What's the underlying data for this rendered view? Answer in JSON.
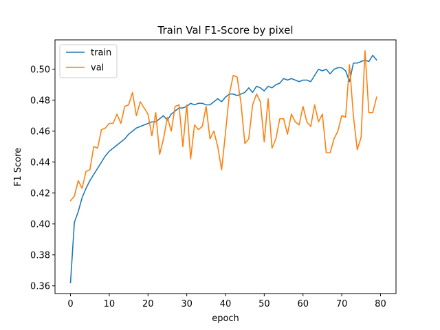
{
  "chart_data": {
    "type": "line",
    "title": "Train Val F1-Score by pixel",
    "xlabel": "epoch",
    "ylabel": "F1 Score",
    "xlim": [
      -4,
      84
    ],
    "ylim": [
      0.355,
      0.519
    ],
    "xticks": [
      0,
      10,
      20,
      30,
      40,
      50,
      60,
      70,
      80
    ],
    "yticks": [
      0.36,
      0.38,
      0.4,
      0.42,
      0.44,
      0.46,
      0.48,
      0.5
    ],
    "ytick_labels": [
      "0.36",
      "0.38",
      "0.40",
      "0.42",
      "0.44",
      "0.46",
      "0.48",
      "0.50"
    ],
    "grid": false,
    "legend_position": "upper-left",
    "x": [
      0,
      1,
      2,
      3,
      4,
      5,
      6,
      7,
      8,
      9,
      10,
      11,
      12,
      13,
      14,
      15,
      16,
      17,
      18,
      19,
      20,
      21,
      22,
      23,
      24,
      25,
      26,
      27,
      28,
      29,
      30,
      31,
      32,
      33,
      34,
      35,
      36,
      37,
      38,
      39,
      40,
      41,
      42,
      43,
      44,
      45,
      46,
      47,
      48,
      49,
      50,
      51,
      52,
      53,
      54,
      55,
      56,
      57,
      58,
      59,
      60,
      61,
      62,
      63,
      64,
      65,
      66,
      67,
      68,
      69,
      70,
      71,
      72,
      73,
      74,
      75,
      76,
      77,
      78,
      79
    ],
    "series": [
      {
        "name": "train",
        "color": "#1f77b4",
        "values": [
          0.362,
          0.401,
          0.408,
          0.417,
          0.423,
          0.428,
          0.432,
          0.436,
          0.44,
          0.444,
          0.447,
          0.449,
          0.451,
          0.453,
          0.455,
          0.458,
          0.46,
          0.462,
          0.463,
          0.464,
          0.465,
          0.466,
          0.466,
          0.468,
          0.47,
          0.467,
          0.471,
          0.473,
          0.475,
          0.475,
          0.476,
          0.478,
          0.477,
          0.478,
          0.478,
          0.477,
          0.477,
          0.479,
          0.481,
          0.479,
          0.482,
          0.484,
          0.484,
          0.483,
          0.484,
          0.485,
          0.488,
          0.485,
          0.489,
          0.488,
          0.486,
          0.489,
          0.488,
          0.49,
          0.491,
          0.494,
          0.493,
          0.494,
          0.493,
          0.492,
          0.493,
          0.493,
          0.492,
          0.496,
          0.5,
          0.499,
          0.5,
          0.497,
          0.5,
          0.501,
          0.501,
          0.499,
          0.492,
          0.504,
          0.504,
          0.505,
          0.506,
          0.505,
          0.509,
          0.506
        ]
      },
      {
        "name": "val",
        "color": "#ff7f0e",
        "values": [
          0.415,
          0.418,
          0.428,
          0.423,
          0.434,
          0.435,
          0.45,
          0.449,
          0.461,
          0.462,
          0.465,
          0.465,
          0.471,
          0.465,
          0.476,
          0.477,
          0.485,
          0.47,
          0.479,
          0.475,
          0.471,
          0.457,
          0.472,
          0.445,
          0.455,
          0.469,
          0.46,
          0.476,
          0.477,
          0.45,
          0.477,
          0.442,
          0.464,
          0.461,
          0.463,
          0.476,
          0.455,
          0.46,
          0.45,
          0.435,
          0.459,
          0.484,
          0.496,
          0.495,
          0.478,
          0.452,
          0.455,
          0.477,
          0.484,
          0.479,
          0.453,
          0.481,
          0.449,
          0.455,
          0.468,
          0.468,
          0.458,
          0.471,
          0.466,
          0.464,
          0.476,
          0.466,
          0.463,
          0.477,
          0.466,
          0.471,
          0.446,
          0.446,
          0.455,
          0.46,
          0.47,
          0.469,
          0.503,
          0.47,
          0.448,
          0.456,
          0.512,
          0.472,
          0.472,
          0.482
        ]
      }
    ]
  }
}
